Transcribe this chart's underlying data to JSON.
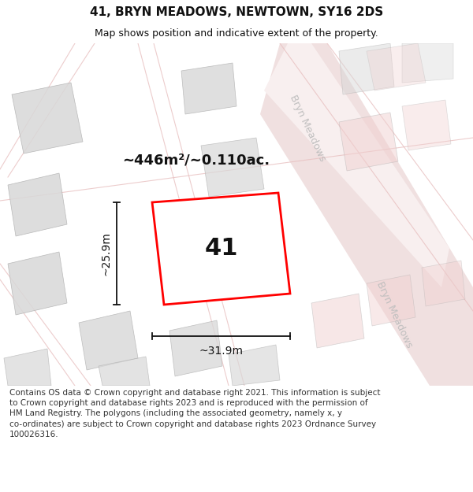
{
  "title": "41, BRYN MEADOWS, NEWTOWN, SY16 2DS",
  "subtitle": "Map shows position and indicative extent of the property.",
  "footer": "Contains OS data © Crown copyright and database right 2021. This information is subject\nto Crown copyright and database rights 2023 and is reproduced with the permission of\nHM Land Registry. The polygons (including the associated geometry, namely x, y\nco-ordinates) are subject to Crown copyright and database rights 2023 Ordnance Survey\n100026316.",
  "area_text": "~446m²/~0.110ac.",
  "label_41": "41",
  "dim_width": "~31.9m",
  "dim_height": "~25.9m",
  "road_label_1": "Bryn Meadows",
  "road_label_2": "Bryn Meadows",
  "bg_color": "#ffffff",
  "map_bg": "#f5f5f5",
  "plot_color_stroke": "#ff0000",
  "building_fill": "#d8d8d8",
  "building_stroke": "#b0b0b0",
  "road_fill": "#f0e0e0",
  "road_stroke": "#e8c8c8",
  "road_label_color": "#c0bfbf",
  "dim_line_color": "#111111",
  "area_text_color": "#111111",
  "label_color": "#111111",
  "figsize": [
    6.0,
    6.25
  ],
  "dpi": 100,
  "title_fontsize": 11,
  "subtitle_fontsize": 9,
  "area_fontsize": 13,
  "label_fontsize": 22,
  "dim_fontsize": 10,
  "road_fontsize": 9,
  "footer_fontsize": 7.5
}
